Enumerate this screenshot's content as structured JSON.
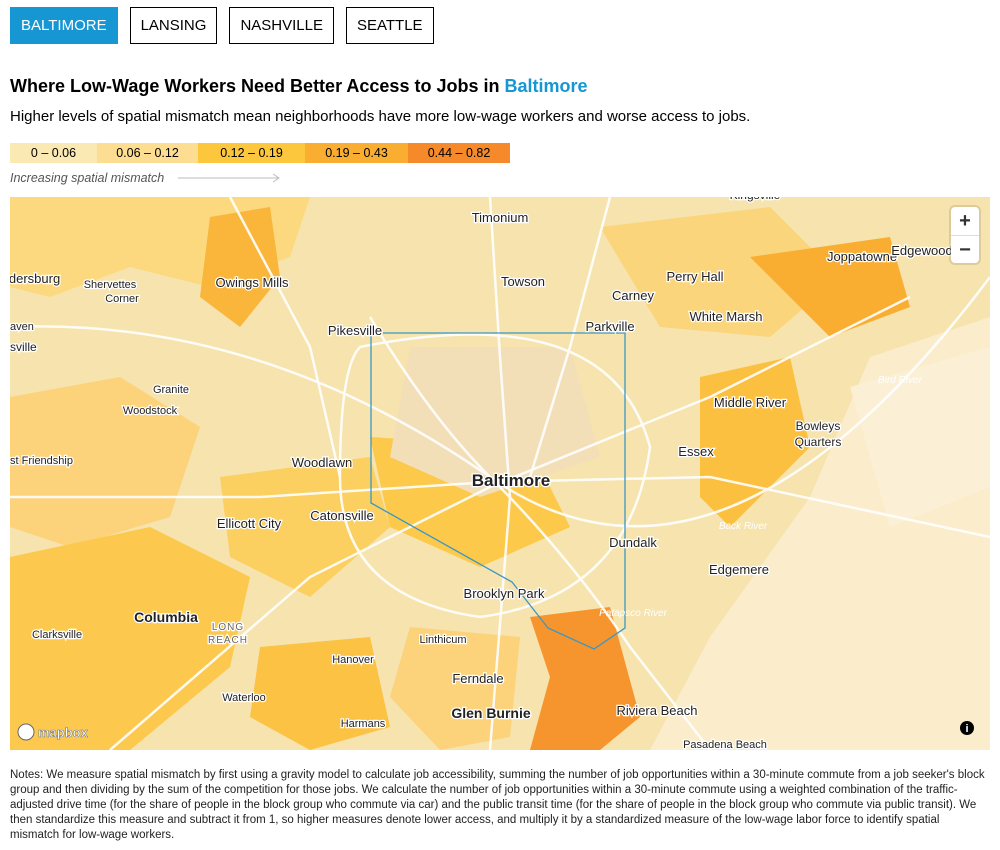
{
  "tabs": [
    "BALTIMORE",
    "LANSING",
    "NASHVILLE",
    "SEATTLE"
  ],
  "header": {
    "title": "Where Low-Wage Workers Need Better Access to Jobs in",
    "city": "Baltimore",
    "subtitle": "Higher levels of spatial mismatch mean neighborhoods have more low-wage workers and worse access to jobs."
  },
  "legend": {
    "items": [
      {
        "label": "0 – 0.06",
        "color": "#fbe9b4"
      },
      {
        "label": "0.06 – 0.12",
        "color": "#fcdd91"
      },
      {
        "label": "0.12 – 0.19",
        "color": "#fcc73c"
      },
      {
        "label": "0.19 – 0.43",
        "color": "#f9ae31"
      },
      {
        "label": "0.44 – 0.82",
        "color": "#f68a2b"
      }
    ],
    "note": "Increasing spatial mismatch"
  },
  "map": {
    "labels": [
      "Timonium",
      "Towson",
      "Carney",
      "Perry Hall",
      "Joppatowne",
      "Edgewood",
      "Kingsville",
      "ldersburg",
      "Shervettes",
      "Corner",
      "Owings Mills",
      "Pikesville",
      "Parkville",
      "White Marsh",
      "aven",
      "sville",
      "Granite",
      "Woodstock",
      "Middle River",
      "Bird River",
      "Bowleys",
      "Quarters",
      "Essex",
      "st Friendship",
      "Woodlawn",
      "Baltimore",
      "Catonsville",
      "Ellicott City",
      "Back River",
      "Dundalk",
      "Edgemere",
      "Brooklyn Park",
      "Patapsco River",
      "Columbia",
      "LONG",
      "REACH",
      "Clarksville",
      "Linthicum",
      "Hanover",
      "Ferndale",
      "Waterloo",
      "Harmans",
      "Glen Burnie",
      "Riviera Beach",
      "Pasadena Beach"
    ],
    "zoom_in": "+",
    "zoom_out": "−",
    "logo": "mapbox",
    "info": "i"
  },
  "notes": "Notes: We measure spatial mismatch by first using a gravity model to calculate job accessibility, summing the number of job opportunities within a 30-minute commute from a job seeker's block group and then dividing by the sum of the competition for those jobs. We calculate the number of job opportunities within a 30-minute commute using a weighted combination of the traffic-adjusted drive time (for the share of people in the block group who commute via car) and the public transit time (for the share of people in the block group who commute via public transit). We then standardize this measure and subtract it from 1, so higher measures denote lower access, and multiply it by a standardized measure of the low-wage labor force to identify spatial mismatch for low-wage workers."
}
